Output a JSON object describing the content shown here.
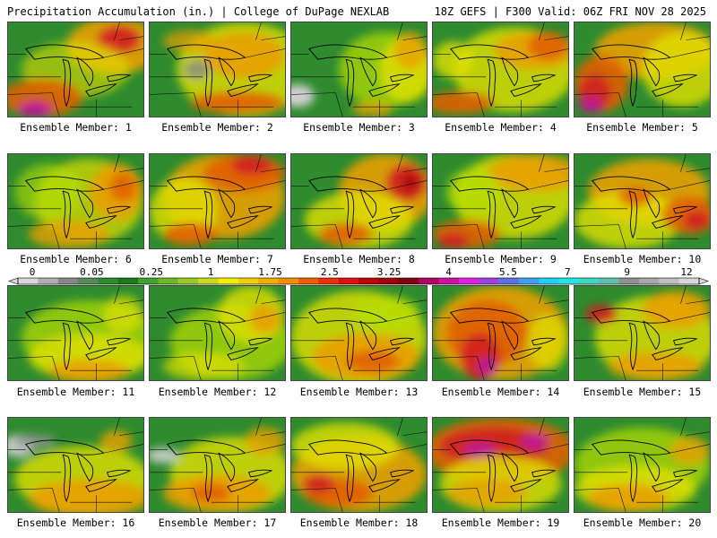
{
  "header": {
    "title": "Precipitation Accumulation (in.) | College of DuPage NEXLAB",
    "run_info": "18Z GEFS | F300 Valid: 06Z FRI NOV 28 2025"
  },
  "members": [
    {
      "label": "Ensemble Member: 1",
      "blobs": [
        [
          "#e8a000",
          0.78,
          0.25,
          0.35,
          0.3,
          0.9
        ],
        [
          "#d02020",
          0.82,
          0.18,
          0.16,
          0.15,
          0.9
        ],
        [
          "#e0e000",
          0.5,
          0.5,
          0.4,
          0.3,
          0.6
        ],
        [
          "#e06000",
          0.25,
          0.8,
          0.3,
          0.2,
          0.9
        ],
        [
          "#c01890",
          0.2,
          0.92,
          0.12,
          0.08,
          1
        ]
      ]
    },
    {
      "label": "Ensemble Member: 2",
      "blobs": [
        [
          "#e0e000",
          0.7,
          0.5,
          0.5,
          0.5,
          0.8
        ],
        [
          "#e8a000",
          0.7,
          0.35,
          0.3,
          0.25,
          0.9
        ],
        [
          "#e06000",
          0.65,
          0.85,
          0.35,
          0.12,
          0.9
        ],
        [
          "#888888",
          0.35,
          0.5,
          0.1,
          0.1,
          0.8
        ],
        [
          "#e8a000",
          0.3,
          0.2,
          0.2,
          0.12,
          0.7
        ]
      ]
    },
    {
      "label": "Ensemble Member: 3",
      "blobs": [
        [
          "#b8e000",
          0.7,
          0.5,
          0.35,
          0.4,
          0.7
        ],
        [
          "#e0e000",
          0.85,
          0.5,
          0.2,
          0.35,
          0.8
        ],
        [
          "#e8a000",
          0.88,
          0.3,
          0.12,
          0.2,
          0.8
        ],
        [
          "#d0d0d0",
          0.05,
          0.78,
          0.12,
          0.12,
          1
        ],
        [
          "#e8a000",
          0.6,
          0.92,
          0.15,
          0.08,
          0.8
        ]
      ]
    },
    {
      "label": "Ensemble Member: 4",
      "blobs": [
        [
          "#e0e000",
          0.6,
          0.5,
          0.45,
          0.45,
          0.8
        ],
        [
          "#e8a000",
          0.75,
          0.3,
          0.3,
          0.2,
          0.9
        ],
        [
          "#e06000",
          0.85,
          0.25,
          0.15,
          0.15,
          0.9
        ],
        [
          "#e06000",
          0.2,
          0.85,
          0.25,
          0.12,
          0.9
        ],
        [
          "#e0e000",
          0.15,
          0.4,
          0.15,
          0.2,
          0.8
        ]
      ]
    },
    {
      "label": "Ensemble Member: 5",
      "blobs": [
        [
          "#e8a000",
          0.6,
          0.3,
          0.45,
          0.3,
          0.9
        ],
        [
          "#e0e000",
          0.8,
          0.5,
          0.3,
          0.4,
          0.8
        ],
        [
          "#e06000",
          0.2,
          0.65,
          0.2,
          0.3,
          0.9
        ],
        [
          "#d02020",
          0.15,
          0.75,
          0.12,
          0.2,
          0.9
        ],
        [
          "#c01890",
          0.12,
          0.88,
          0.08,
          0.08,
          1
        ]
      ]
    },
    {
      "label": "Ensemble Member: 6",
      "blobs": [
        [
          "#e0e000",
          0.6,
          0.5,
          0.4,
          0.45,
          0.7
        ],
        [
          "#e8a000",
          0.8,
          0.4,
          0.2,
          0.3,
          0.9
        ],
        [
          "#e06000",
          0.85,
          0.35,
          0.1,
          0.15,
          0.9
        ],
        [
          "#e8a000",
          0.45,
          0.85,
          0.3,
          0.15,
          0.8
        ],
        [
          "#b8e000",
          0.3,
          0.4,
          0.25,
          0.3,
          0.6
        ]
      ]
    },
    {
      "label": "Ensemble Member: 7",
      "blobs": [
        [
          "#e8a000",
          0.55,
          0.45,
          0.45,
          0.45,
          0.9
        ],
        [
          "#e06000",
          0.7,
          0.2,
          0.3,
          0.2,
          0.9
        ],
        [
          "#d02020",
          0.75,
          0.12,
          0.15,
          0.1,
          0.9
        ],
        [
          "#e0e000",
          0.25,
          0.6,
          0.25,
          0.35,
          0.8
        ],
        [
          "#e06000",
          0.3,
          0.85,
          0.2,
          0.12,
          0.9
        ]
      ]
    },
    {
      "label": "Ensemble Member: 8",
      "blobs": [
        [
          "#e8a000",
          0.7,
          0.4,
          0.35,
          0.4,
          0.9
        ],
        [
          "#d02020",
          0.85,
          0.3,
          0.15,
          0.2,
          0.9
        ],
        [
          "#b01010",
          0.88,
          0.3,
          0.07,
          0.1,
          1
        ],
        [
          "#e0e000",
          0.5,
          0.7,
          0.4,
          0.3,
          0.8
        ],
        [
          "#e06000",
          0.4,
          0.85,
          0.2,
          0.12,
          0.9
        ]
      ]
    },
    {
      "label": "Ensemble Member: 9",
      "blobs": [
        [
          "#e0e000",
          0.6,
          0.45,
          0.45,
          0.45,
          0.8
        ],
        [
          "#e8a000",
          0.75,
          0.2,
          0.35,
          0.2,
          0.9
        ],
        [
          "#e06000",
          0.25,
          0.85,
          0.25,
          0.15,
          0.9
        ],
        [
          "#d02020",
          0.15,
          0.92,
          0.12,
          0.08,
          0.9
        ],
        [
          "#b8e000",
          0.3,
          0.4,
          0.2,
          0.25,
          0.7
        ]
      ]
    },
    {
      "label": "Ensemble Member: 10",
      "blobs": [
        [
          "#e8a000",
          0.55,
          0.4,
          0.45,
          0.35,
          0.9
        ],
        [
          "#e0e000",
          0.4,
          0.7,
          0.4,
          0.3,
          0.8
        ],
        [
          "#e06000",
          0.85,
          0.65,
          0.2,
          0.2,
          0.9
        ],
        [
          "#d02020",
          0.9,
          0.7,
          0.1,
          0.1,
          0.9
        ],
        [
          "#e06000",
          0.45,
          0.45,
          0.12,
          0.1,
          0.9
        ]
      ]
    },
    {
      "label": "Ensemble Member: 11",
      "blobs": [
        [
          "#b8e000",
          0.6,
          0.55,
          0.5,
          0.4,
          0.7
        ],
        [
          "#e0e000",
          0.6,
          0.75,
          0.45,
          0.25,
          0.8
        ],
        [
          "#e8a000",
          0.6,
          0.9,
          0.3,
          0.12,
          0.9
        ],
        [
          "#e0e000",
          0.85,
          0.3,
          0.15,
          0.2,
          0.7
        ]
      ]
    },
    {
      "label": "Ensemble Member: 12",
      "blobs": [
        [
          "#b8e000",
          0.6,
          0.6,
          0.45,
          0.4,
          0.7
        ],
        [
          "#e0e000",
          0.75,
          0.3,
          0.25,
          0.3,
          0.8
        ],
        [
          "#e8a000",
          0.85,
          0.35,
          0.12,
          0.15,
          0.9
        ],
        [
          "#e0e000",
          0.4,
          0.85,
          0.3,
          0.15,
          0.7
        ]
      ]
    },
    {
      "label": "Ensemble Member: 13",
      "blobs": [
        [
          "#e0e000",
          0.5,
          0.55,
          0.5,
          0.5,
          0.8
        ],
        [
          "#e8a000",
          0.55,
          0.75,
          0.4,
          0.25,
          0.9
        ],
        [
          "#e06000",
          0.6,
          0.8,
          0.2,
          0.12,
          0.9
        ],
        [
          "#b8e000",
          0.7,
          0.3,
          0.25,
          0.2,
          0.7
        ]
      ]
    },
    {
      "label": "Ensemble Member: 14",
      "blobs": [
        [
          "#e8a000",
          0.5,
          0.5,
          0.5,
          0.5,
          0.9
        ],
        [
          "#e06000",
          0.4,
          0.5,
          0.3,
          0.35,
          0.9
        ],
        [
          "#d02020",
          0.35,
          0.75,
          0.15,
          0.25,
          0.9
        ],
        [
          "#c01890",
          0.4,
          0.85,
          0.07,
          0.1,
          1
        ],
        [
          "#e0e000",
          0.85,
          0.6,
          0.15,
          0.3,
          0.7
        ]
      ]
    },
    {
      "label": "Ensemble Member: 15",
      "blobs": [
        [
          "#e0e000",
          0.6,
          0.55,
          0.45,
          0.45,
          0.8
        ],
        [
          "#e8a000",
          0.75,
          0.25,
          0.25,
          0.2,
          0.9
        ],
        [
          "#d02020",
          0.2,
          0.3,
          0.12,
          0.1,
          0.9
        ],
        [
          "#e8a000",
          0.6,
          0.85,
          0.35,
          0.15,
          0.9
        ]
      ]
    },
    {
      "label": "Ensemble Member: 16",
      "blobs": [
        [
          "#e0e000",
          0.55,
          0.65,
          0.5,
          0.35,
          0.8
        ],
        [
          "#e8a000",
          0.6,
          0.85,
          0.45,
          0.2,
          0.9
        ],
        [
          "#d0d0d0",
          0.08,
          0.3,
          0.12,
          0.12,
          0.9
        ],
        [
          "#909090",
          0.2,
          0.25,
          0.15,
          0.08,
          0.8
        ],
        [
          "#e8a000",
          0.8,
          0.25,
          0.12,
          0.12,
          0.8
        ]
      ]
    },
    {
      "label": "Ensemble Member: 17",
      "blobs": [
        [
          "#e0e000",
          0.6,
          0.6,
          0.45,
          0.4,
          0.8
        ],
        [
          "#e8a000",
          0.5,
          0.8,
          0.4,
          0.2,
          0.9
        ],
        [
          "#d0d0d0",
          0.1,
          0.4,
          0.12,
          0.08,
          0.9
        ],
        [
          "#e06000",
          0.45,
          0.8,
          0.15,
          0.1,
          0.9
        ],
        [
          "#e8a000",
          0.85,
          0.25,
          0.15,
          0.15,
          0.8
        ]
      ]
    },
    {
      "label": "Ensemble Member: 18",
      "blobs": [
        [
          "#e8a000",
          0.5,
          0.6,
          0.5,
          0.4,
          0.9
        ],
        [
          "#e0e000",
          0.4,
          0.3,
          0.4,
          0.25,
          0.8
        ],
        [
          "#e06000",
          0.35,
          0.8,
          0.25,
          0.15,
          0.9
        ],
        [
          "#d02020",
          0.2,
          0.7,
          0.12,
          0.1,
          0.9
        ]
      ]
    },
    {
      "label": "Ensemble Member: 19",
      "blobs": [
        [
          "#e06000",
          0.5,
          0.35,
          0.55,
          0.35,
          0.9
        ],
        [
          "#d02020",
          0.45,
          0.3,
          0.4,
          0.2,
          0.9
        ],
        [
          "#c01890",
          0.35,
          0.35,
          0.12,
          0.08,
          1
        ],
        [
          "#c01890",
          0.75,
          0.25,
          0.1,
          0.08,
          1
        ],
        [
          "#e0e000",
          0.5,
          0.7,
          0.45,
          0.3,
          0.8
        ],
        [
          "#e8a000",
          0.4,
          0.8,
          0.3,
          0.15,
          0.8
        ]
      ]
    },
    {
      "label": "Ensemble Member: 20",
      "blobs": [
        [
          "#b8e000",
          0.5,
          0.5,
          0.5,
          0.4,
          0.7
        ],
        [
          "#e0e000",
          0.45,
          0.75,
          0.45,
          0.25,
          0.8
        ],
        [
          "#e8a000",
          0.4,
          0.85,
          0.3,
          0.15,
          0.9
        ],
        [
          "#e8a000",
          0.85,
          0.35,
          0.15,
          0.15,
          0.8
        ]
      ]
    }
  ],
  "colorbar": {
    "labels": [
      "0",
      "0.05",
      "0.25",
      "1",
      "1.75",
      "2.5",
      "3.25",
      "4",
      "5.5",
      "7",
      "9",
      "12"
    ],
    "colors": [
      "#d8d8d8",
      "#b0b0b0",
      "#888888",
      "#5a8a5a",
      "#2e8b2e",
      "#1a7a1a",
      "#40a030",
      "#6ab82a",
      "#98cc28",
      "#c6dc20",
      "#f0f000",
      "#f0d000",
      "#f0b000",
      "#f09000",
      "#f06000",
      "#f03000",
      "#e01010",
      "#c00000",
      "#a00000",
      "#800010",
      "#b00060",
      "#d010a0",
      "#e020e0",
      "#a040e0",
      "#6070e0",
      "#40a0f0",
      "#20d0f0",
      "#20e8e0",
      "#40d8c0",
      "#60c0b0",
      "#909090",
      "#a8a8a8",
      "#c0c0c0",
      "#d8d8d8"
    ],
    "base_green": "#2e8b2e"
  }
}
